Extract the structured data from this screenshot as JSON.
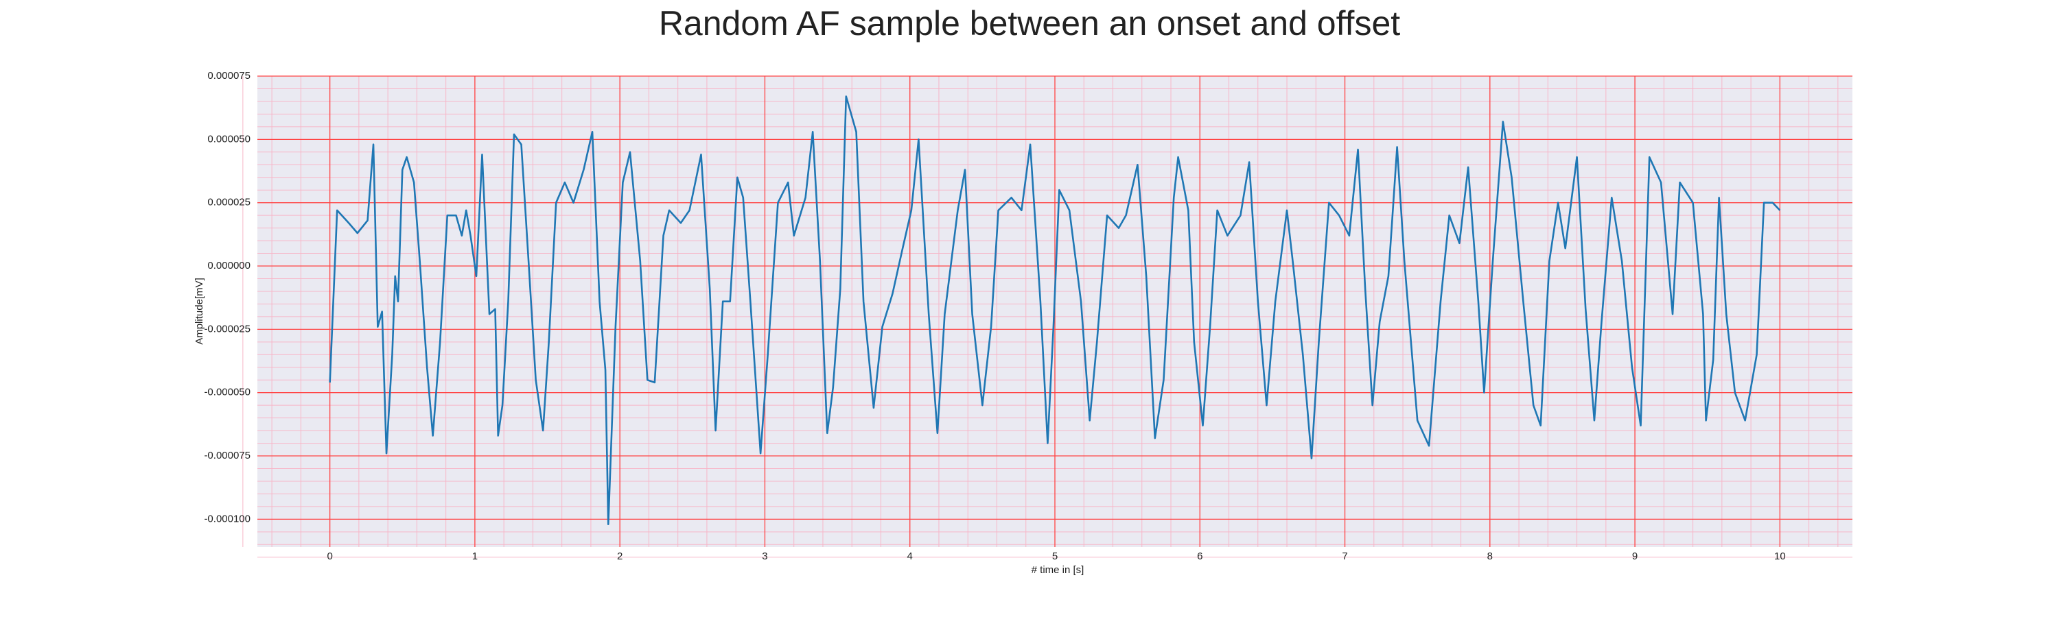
{
  "chart_data": {
    "type": "line",
    "title": "Random AF sample between an onset and offset",
    "xlabel": "# time in [s]",
    "ylabel": "Amplitude[mV]",
    "x": [
      0,
      0.05,
      0.13,
      0.19,
      0.26,
      0.28,
      0.3,
      0.33,
      0.36,
      0.39,
      0.43,
      0.45,
      0.47,
      0.5,
      0.53,
      0.58,
      0.62,
      0.67,
      0.71,
      0.76,
      0.81,
      0.87,
      0.91,
      0.94,
      0.97,
      1.01,
      1.05,
      1.1,
      1.14,
      1.16,
      1.19,
      1.23,
      1.27,
      1.32,
      1.37,
      1.42,
      1.47,
      1.51,
      1.56,
      1.62,
      1.68,
      1.75,
      1.81,
      1.86,
      1.9,
      1.92,
      1.95,
      1.97,
      2.02,
      2.07,
      2.14,
      2.19,
      2.24,
      2.3,
      2.34,
      2.42,
      2.48,
      2.56,
      2.62,
      2.66,
      2.71,
      2.76,
      2.81,
      2.85,
      2.9,
      2.97,
      3.02,
      3.09,
      3.16,
      3.2,
      3.28,
      3.33,
      3.38,
      3.43,
      3.47,
      3.52,
      3.56,
      3.63,
      3.68,
      3.75,
      3.81,
      3.88,
      3.95,
      4.01,
      4.06,
      4.13,
      4.19,
      4.24,
      4.33,
      4.38,
      4.43,
      4.5,
      4.56,
      4.61,
      4.7,
      4.77,
      4.83,
      4.9,
      4.95,
      4.99,
      5.03,
      5.1,
      5.18,
      5.24,
      5.29,
      5.36,
      5.44,
      5.49,
      5.57,
      5.63,
      5.69,
      5.75,
      5.82,
      5.85,
      5.92,
      5.96,
      6.02,
      6.07,
      6.12,
      6.19,
      6.28,
      6.34,
      6.4,
      6.46,
      6.52,
      6.6,
      6.64,
      6.71,
      6.77,
      6.82,
      6.89,
      6.96,
      7.03,
      7.09,
      7.14,
      7.19,
      7.24,
      7.3,
      7.36,
      7.41,
      7.5,
      7.58,
      7.66,
      7.72,
      7.79,
      7.85,
      7.92,
      7.96,
      8.02,
      8.09,
      8.15,
      8.23,
      8.3,
      8.35,
      8.41,
      8.47,
      8.52,
      8.6,
      8.66,
      8.72,
      8.77,
      8.84,
      8.91,
      8.98,
      9.04,
      9.1,
      9.18,
      9.26,
      9.31,
      9.4,
      9.47,
      9.49,
      9.54,
      9.58,
      9.63,
      9.69,
      9.76,
      9.84,
      9.89,
      9.95,
      10
    ],
    "series": [
      {
        "color": "#1f77b4",
        "values": [
          -4.6e-05,
          2.2e-05,
          1.7e-05,
          1.3e-05,
          1.8e-05,
          3.3e-05,
          4.8e-05,
          -2.4e-05,
          -1.8e-05,
          -7.4e-05,
          -3.5e-05,
          -4e-06,
          -1.4e-05,
          3.8e-05,
          4.3e-05,
          3.3e-05,
          2e-06,
          -4e-05,
          -6.7e-05,
          -3e-05,
          2e-05,
          2e-05,
          1.2e-05,
          2.2e-05,
          1.2e-05,
          -4e-06,
          4.4e-05,
          -1.9e-05,
          -1.7e-05,
          -6.7e-05,
          -5.5e-05,
          -1.4e-05,
          5.2e-05,
          4.8e-05,
          2e-06,
          -4.5e-05,
          -6.5e-05,
          -3e-05,
          2.5e-05,
          3.3e-05,
          2.5e-05,
          3.8e-05,
          5.3e-05,
          -1.4e-05,
          -4.1e-05,
          -0.000102,
          -5.5e-05,
          -2.4e-05,
          3.3e-05,
          4.5e-05,
          2e-06,
          -4.5e-05,
          -4.6e-05,
          1.2e-05,
          2.2e-05,
          1.7e-05,
          2.2e-05,
          4.4e-05,
          -9e-06,
          -6.5e-05,
          -1.4e-05,
          -1.4e-05,
          3.5e-05,
          2.7e-05,
          -1.4e-05,
          -7.4e-05,
          -3.5e-05,
          2.5e-05,
          3.3e-05,
          1.2e-05,
          2.7e-05,
          5.3e-05,
          2e-06,
          -6.6e-05,
          -4.8e-05,
          -9e-06,
          6.7e-05,
          5.3e-05,
          -1.4e-05,
          -5.6e-05,
          -2.4e-05,
          -1.1e-05,
          7e-06,
          2.2e-05,
          5e-05,
          -1.9e-05,
          -6.6e-05,
          -1.9e-05,
          2.2e-05,
          3.8e-05,
          -1.9e-05,
          -5.5e-05,
          -2.4e-05,
          2.2e-05,
          2.7e-05,
          2.2e-05,
          4.8e-05,
          -1.4e-05,
          -7e-05,
          -2.4e-05,
          3e-05,
          2.2e-05,
          -1.4e-05,
          -6.1e-05,
          -3e-05,
          2e-05,
          1.5e-05,
          2e-05,
          4e-05,
          -4e-06,
          -6.8e-05,
          -4.5e-05,
          2.7e-05,
          4.3e-05,
          2.2e-05,
          -3e-05,
          -6.3e-05,
          -2.4e-05,
          2.2e-05,
          1.2e-05,
          2e-05,
          4.1e-05,
          -1.4e-05,
          -5.5e-05,
          -1.4e-05,
          2.2e-05,
          2e-06,
          -3.5e-05,
          -7.6e-05,
          -3e-05,
          2.5e-05,
          2e-05,
          1.2e-05,
          4.6e-05,
          -9e-06,
          -5.5e-05,
          -2.2e-05,
          -4e-06,
          4.7e-05,
          2e-06,
          -6.1e-05,
          -7.1e-05,
          -1.4e-05,
          2e-05,
          9e-06,
          3.9e-05,
          -1.4e-05,
          -5e-05,
          2e-06,
          5.7e-05,
          3.5e-05,
          -1.4e-05,
          -5.5e-05,
          -6.3e-05,
          2e-06,
          2.5e-05,
          7e-06,
          4.3e-05,
          -1.7e-05,
          -6.1e-05,
          -2.2e-05,
          2.7e-05,
          2e-06,
          -4e-05,
          -6.3e-05,
          4.3e-05,
          3.3e-05,
          -1.9e-05,
          3.3e-05,
          2.5e-05,
          -1.9e-05,
          -6.1e-05,
          -3.7e-05,
          2.7e-05,
          -1.9e-05,
          -5e-05,
          -6.1e-05,
          -3.5e-05,
          2.5e-05,
          2.5e-05,
          2.2e-05
        ]
      }
    ],
    "xlim": [
      -0.5,
      10.5
    ],
    "ylim": [
      -0.000111,
      7.5e-05
    ],
    "xticks": [
      0,
      1,
      2,
      3,
      4,
      5,
      6,
      7,
      8,
      9,
      10
    ],
    "yticks": [
      {
        "value": -0.0001,
        "label": "-0.000100"
      },
      {
        "value": -7.5e-05,
        "label": "-0.000075"
      },
      {
        "value": -5e-05,
        "label": "-0.000050"
      },
      {
        "value": -2.5e-05,
        "label": "-0.000025"
      },
      {
        "value": 0,
        "label": "0.000000"
      },
      {
        "value": 2.5e-05,
        "label": "0.000025"
      },
      {
        "value": 5e-05,
        "label": "0.000050"
      },
      {
        "value": 7.5e-05,
        "label": "0.000075"
      }
    ],
    "grid": true,
    "grid_color": "#ff4444",
    "minor_grid": true,
    "minor_grid_color": "#f7b6c8",
    "background": "#eaeaf2"
  }
}
